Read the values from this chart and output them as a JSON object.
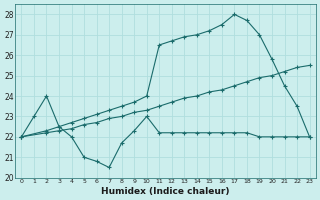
{
  "xlabel": "Humidex (Indice chaleur)",
  "xlim": [
    -0.5,
    23.5
  ],
  "ylim": [
    20,
    28.5
  ],
  "yticks": [
    20,
    21,
    22,
    23,
    24,
    25,
    26,
    27,
    28
  ],
  "xticks": [
    0,
    1,
    2,
    3,
    4,
    5,
    6,
    7,
    8,
    9,
    10,
    11,
    12,
    13,
    14,
    15,
    16,
    17,
    18,
    19,
    20,
    21,
    22,
    23
  ],
  "bg_color": "#cceeed",
  "grid_color": "#b0dede",
  "line_color": "#1a6b6b",
  "line1_x": [
    0,
    1,
    2,
    3,
    4,
    5,
    6,
    7,
    8,
    9,
    10,
    11,
    12,
    13,
    14,
    15,
    16,
    17,
    18,
    19,
    20,
    21,
    22,
    23
  ],
  "line1_y": [
    22,
    23,
    24,
    22.5,
    22,
    21,
    20.8,
    20.5,
    21.7,
    22.3,
    23.0,
    22.2,
    22.2,
    22.2,
    22.2,
    22.2,
    22.2,
    22.2,
    22.2,
    22.0,
    22.0,
    22.0,
    22.0,
    22.0
  ],
  "line2_x": [
    0,
    2,
    3,
    4,
    5,
    6,
    7,
    8,
    9,
    10,
    11,
    12,
    13,
    14,
    15,
    16,
    17,
    18,
    19,
    20,
    21,
    22,
    23
  ],
  "line2_y": [
    22.0,
    22.2,
    22.3,
    22.4,
    22.6,
    22.7,
    22.9,
    23.0,
    23.2,
    23.3,
    23.5,
    23.7,
    23.9,
    24.0,
    24.2,
    24.3,
    24.5,
    24.7,
    24.9,
    25.0,
    25.2,
    25.4,
    25.5
  ],
  "line3_x": [
    0,
    2,
    3,
    4,
    5,
    6,
    7,
    8,
    9,
    10,
    11,
    12,
    13,
    14,
    15,
    16,
    17,
    18,
    19,
    20,
    21,
    22,
    23
  ],
  "line3_y": [
    22.0,
    22.3,
    22.5,
    22.7,
    22.9,
    23.1,
    23.3,
    23.5,
    23.7,
    24.0,
    26.5,
    26.7,
    26.9,
    27.0,
    27.2,
    27.5,
    28.0,
    27.7,
    27.0,
    25.8,
    24.5,
    23.5,
    22.0
  ]
}
